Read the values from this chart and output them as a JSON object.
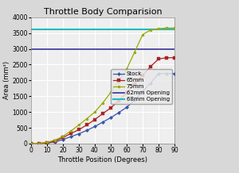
{
  "title": "Throttle Body Comparision",
  "xlabel": "Throttle Position (Degrees)",
  "ylabel": "Area (mm²)",
  "xlim": [
    0,
    90
  ],
  "ylim": [
    0,
    4000
  ],
  "yticks": [
    0,
    500,
    1000,
    1500,
    2000,
    2500,
    3000,
    3500,
    4000
  ],
  "xticks": [
    0,
    10,
    20,
    30,
    40,
    50,
    60,
    70,
    80,
    90
  ],
  "stock_x": [
    0,
    5,
    10,
    15,
    20,
    25,
    30,
    35,
    40,
    45,
    50,
    55,
    60,
    65,
    70,
    75,
    80,
    85,
    90
  ],
  "stock_y": [
    0,
    5,
    20,
    50,
    130,
    220,
    310,
    420,
    540,
    680,
    820,
    980,
    1150,
    1370,
    1650,
    1920,
    2220,
    2220,
    2220
  ],
  "mm65_x": [
    0,
    5,
    10,
    15,
    20,
    25,
    30,
    35,
    40,
    45,
    50,
    55,
    60,
    65,
    70,
    75,
    80,
    85,
    90
  ],
  "mm65_y": [
    0,
    5,
    25,
    80,
    190,
    320,
    440,
    590,
    760,
    950,
    1130,
    1360,
    1610,
    1890,
    2160,
    2440,
    2680,
    2720,
    2720
  ],
  "mm75_x": [
    0,
    5,
    10,
    15,
    20,
    25,
    30,
    35,
    40,
    45,
    50,
    55,
    60,
    65,
    70,
    75,
    80,
    85,
    90
  ],
  "mm75_y": [
    0,
    10,
    40,
    110,
    230,
    400,
    590,
    790,
    1000,
    1290,
    1620,
    1970,
    2360,
    2900,
    3450,
    3600,
    3640,
    3660,
    3660
  ],
  "mm62_opening_y": 3000,
  "mm68_opening_y": 3610,
  "stock_color": "#3355AA",
  "mm65_color": "#AA2222",
  "mm75_color": "#99AA00",
  "mm62_color": "#333399",
  "mm68_color": "#22BBBB",
  "bg_color": "#D8D8D8",
  "plot_bg_color": "#EFEFEF",
  "grid_color": "#FFFFFF",
  "title_fontsize": 8,
  "label_fontsize": 6,
  "tick_fontsize": 5.5,
  "legend_fontsize": 5
}
